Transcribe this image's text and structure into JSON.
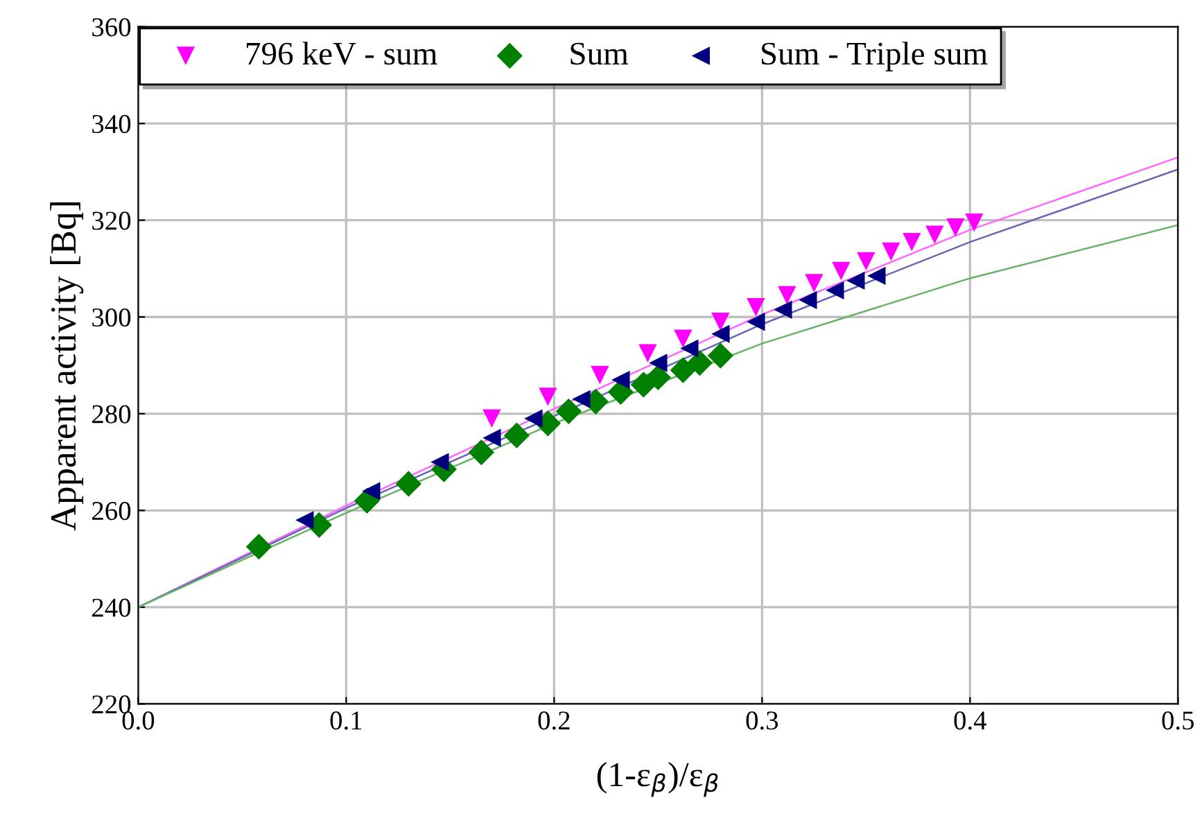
{
  "chart_data": {
    "type": "scatter",
    "xlabel": "(1-ε$_{β}$)/ε$_{β}$",
    "ylabel": "Apparent activity [Bq]",
    "xlim": [
      0,
      0.5
    ],
    "xticks": [
      {
        "value": 0,
        "label": "0.0"
      },
      0.1,
      0.2,
      0.3,
      0.4,
      0.5
    ],
    "ylim": [
      220,
      360
    ],
    "yticks": [
      220,
      240,
      260,
      280,
      300,
      320,
      340,
      360
    ],
    "grid": true,
    "legend": "top left",
    "series": [
      {
        "name": "796 keV - sum",
        "color": "#ff00ff",
        "marker": "triangle_down",
        "x": [
          0.17,
          0.197,
          0.222,
          0.245,
          0.262,
          0.28,
          0.297,
          0.312,
          0.325,
          0.338,
          0.35,
          0.362,
          0.372,
          0.383,
          0.393,
          0.402
        ],
        "values": [
          279,
          283.5,
          288,
          292.5,
          295.5,
          299,
          302,
          304.5,
          307,
          309.5,
          311.5,
          313.5,
          315.5,
          317,
          318.5,
          319.5
        ]
      },
      {
        "name": "Sum",
        "color": "#008000",
        "marker": "diamond",
        "x": [
          0.058,
          0.087,
          0.11,
          0.13,
          0.147,
          0.165,
          0.182,
          0.197,
          0.207,
          0.22,
          0.232,
          0.243,
          0.25,
          0.262,
          0.27,
          0.28
        ],
        "values": [
          252.5,
          257,
          262,
          265.5,
          268.5,
          272,
          275.5,
          278,
          280.5,
          282.5,
          284.5,
          286,
          287.5,
          289,
          290.5,
          292
        ]
      },
      {
        "name": "Sum - Triple sum",
        "color": "#000080",
        "marker": "triangle_left",
        "x": [
          0.08,
          0.112,
          0.145,
          0.17,
          0.19,
          0.213,
          0.232,
          0.25,
          0.265,
          0.28,
          0.297,
          0.31,
          0.322,
          0.335,
          0.345,
          0.355
        ],
        "values": [
          258,
          264,
          270,
          275,
          279,
          283,
          287,
          290.5,
          293.5,
          296.5,
          299,
          301.5,
          303.5,
          305.5,
          307.5,
          308.5
        ]
      },
      {
        "type": "line",
        "color": "#ff66ff",
        "x": [
          0,
          0.1,
          0.2,
          0.3,
          0.4,
          0.5
        ],
        "values": [
          240,
          261,
          281,
          300.5,
          318,
          333
        ]
      },
      {
        "type": "line",
        "color": "#6666b3",
        "x": [
          0,
          0.1,
          0.2,
          0.3,
          0.4,
          0.5
        ],
        "values": [
          240,
          260.5,
          279.5,
          298.5,
          315.5,
          330.5
        ]
      },
      {
        "type": "line",
        "color": "#66b366",
        "x": [
          0,
          0.1,
          0.2,
          0.3,
          0.4,
          0.5
        ],
        "values": [
          240,
          259.5,
          278,
          294.5,
          308,
          319
        ]
      }
    ]
  }
}
